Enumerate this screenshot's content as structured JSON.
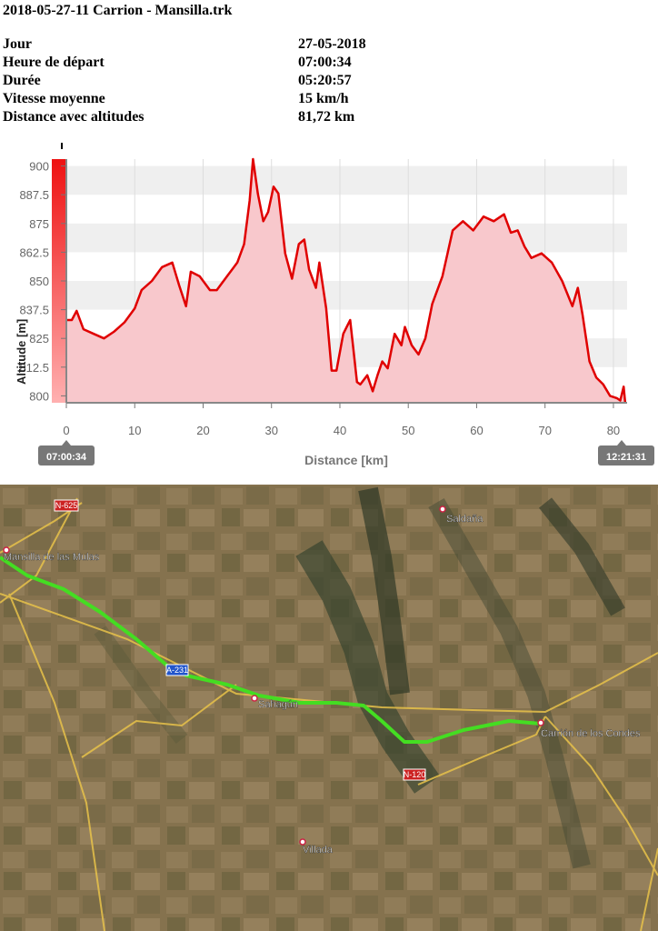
{
  "header": {
    "title": "2018-05-27-11 Carrion - Mansilla.trk"
  },
  "info": [
    {
      "label": "Jour",
      "value": "27-05-2018"
    },
    {
      "label": "Heure de départ",
      "value": "07:00:34"
    },
    {
      "label": "Durée",
      "value": "05:20:57"
    },
    {
      "label": "Vitesse moyenne",
      "value": "15 km/h"
    },
    {
      "label": "Distance avec altitudes",
      "value": "81,72 km"
    }
  ],
  "chart_data": {
    "type": "area",
    "xlabel": "Distance [km]",
    "ylabel": "Altitude [m]",
    "xlim": [
      0,
      82
    ],
    "ylim": [
      797,
      903
    ],
    "x_ticks": [
      0,
      10,
      20,
      30,
      40,
      50,
      60,
      70,
      80
    ],
    "y_ticks": [
      800,
      812.5,
      825,
      837.5,
      850,
      862.5,
      875,
      887.5,
      900
    ],
    "y_tick_labels": [
      "800",
      "812.5",
      "825",
      "837.5",
      "850",
      "862.5",
      "875",
      "887.5",
      "900"
    ],
    "start_time": "07:00:34",
    "end_time": "12:21:31",
    "grid": true,
    "line_color": "#e00000",
    "fill_color": "#f8c8cc",
    "series": [
      {
        "x": [
          0,
          0.8,
          1.5,
          2.5,
          4,
          5.5,
          7,
          8.5,
          10,
          11,
          12.5,
          14,
          15.5,
          16.5,
          17.5,
          18.2,
          19.5,
          21,
          22,
          23.5,
          25,
          26,
          26.8,
          27.3,
          28,
          28.8,
          29.5,
          30.3,
          31,
          32,
          33,
          34,
          34.8,
          35.5,
          36.5,
          37,
          38,
          38.8,
          39.5,
          40.5,
          41.5,
          42.5,
          43,
          44,
          44.8,
          45.5,
          46.2,
          47,
          48,
          49,
          49.5,
          50.5,
          51.5,
          52.5,
          53.5,
          55,
          56.5,
          58,
          59.5,
          61,
          62.5,
          64,
          65,
          66,
          67,
          68,
          69.5,
          71,
          72.5,
          74,
          74.8,
          75.5,
          76.5,
          77.5,
          78.5,
          79.5,
          80.5,
          81,
          81.5,
          81.72
        ],
        "y": [
          833,
          833,
          837,
          829,
          827,
          825,
          828,
          832,
          838,
          846,
          850,
          856,
          858,
          848,
          839,
          854,
          852,
          846,
          846,
          852,
          858,
          866,
          885,
          903,
          888,
          876,
          880,
          891,
          888,
          862,
          851,
          866,
          868,
          855,
          847,
          858,
          838,
          811,
          811,
          827,
          833,
          806,
          805,
          809,
          802,
          809,
          815,
          812,
          827,
          822,
          830,
          822,
          818,
          825,
          840,
          852,
          872,
          876,
          872,
          878,
          876,
          879,
          871,
          872,
          865,
          860,
          862,
          858,
          850,
          839,
          847,
          835,
          815,
          808,
          805,
          800,
          799,
          798,
          804,
          797
        ]
      }
    ]
  },
  "map": {
    "labels": {
      "saldana": "Saldaña",
      "mansilla": "Mansilla de las Mulas",
      "sahagun": "Sahagún",
      "carrion": "Carrión de los Condes",
      "villada": "Villada"
    },
    "roads": {
      "n625": "N-625",
      "a231": "A-231",
      "n120": "N-120"
    },
    "route_color": "#44dd22",
    "road_color": "#e8c24a"
  }
}
